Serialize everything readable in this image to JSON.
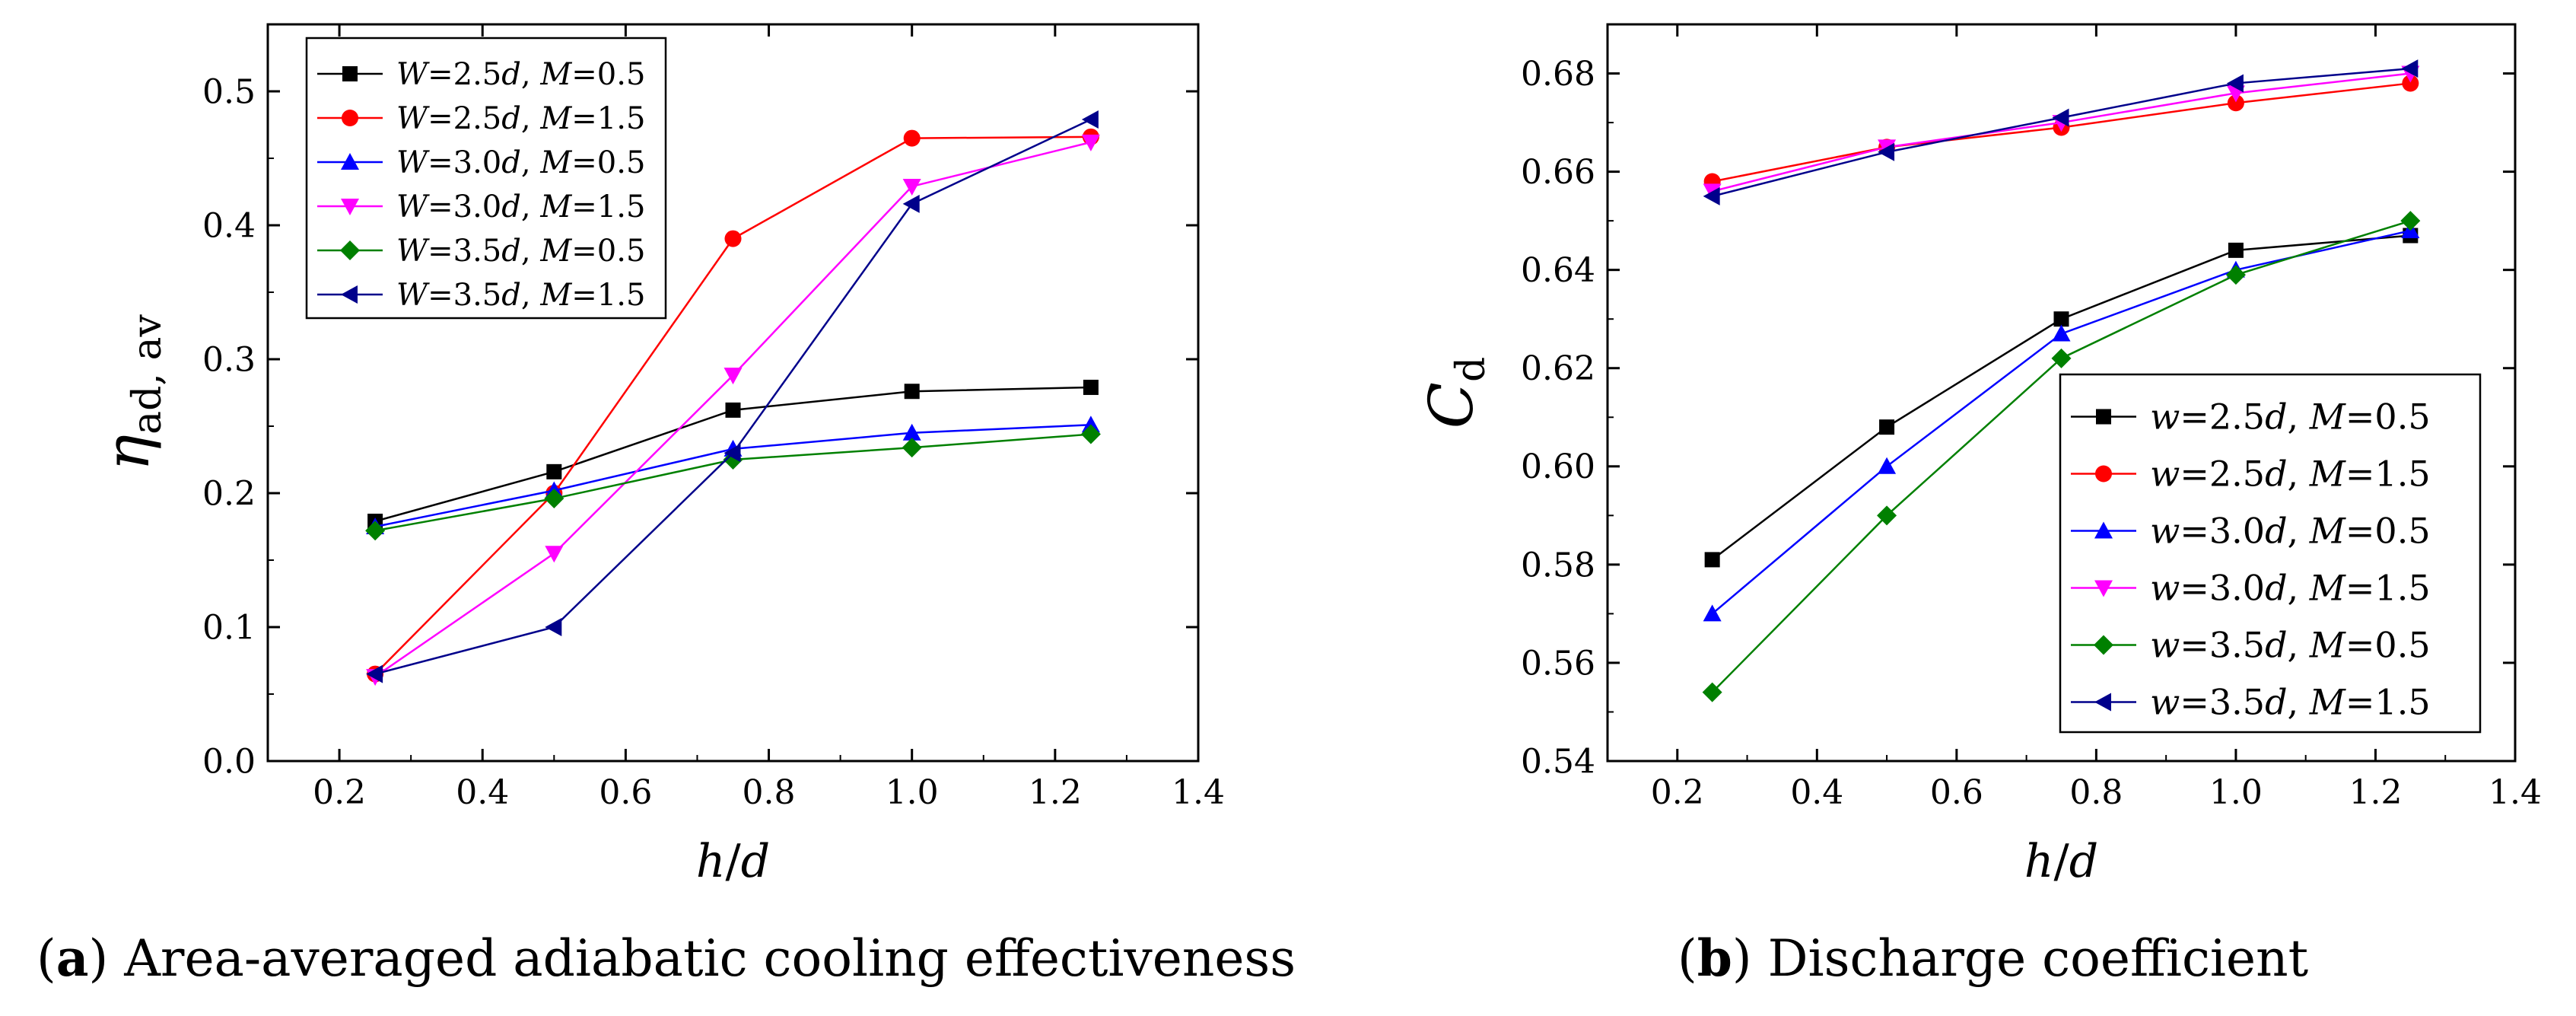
{
  "figure": {
    "caption_a_letter": "a",
    "caption_a_text": " Area-averaged adiabatic cooling effectiveness",
    "caption_b_letter": "b",
    "caption_b_text": " Discharge coefficient"
  },
  "chart_data": [
    {
      "type": "line",
      "panel": "a",
      "ylabel_main": "η",
      "ylabel_sub": "ad, av",
      "xlabel": "h/d",
      "xlim": [
        0.1,
        1.4
      ],
      "ylim": [
        0.0,
        0.55
      ],
      "xticks": [
        0.2,
        0.4,
        0.6,
        0.8,
        1.0,
        1.2,
        1.4
      ],
      "yticks": [
        0.0,
        0.1,
        0.2,
        0.3,
        0.4,
        0.5
      ],
      "x": [
        0.25,
        0.5,
        0.75,
        1.0,
        1.25
      ],
      "legend_position": "top-left",
      "series": [
        {
          "name": "W=2.5d, M=0.5",
          "var": "W",
          "wval": "2.5",
          "mval": "0.5",
          "color": "#000000",
          "marker": "square",
          "values": [
            0.179,
            0.216,
            0.262,
            0.276,
            0.279
          ]
        },
        {
          "name": "W=2.5d, M=1.5",
          "var": "W",
          "wval": "2.5",
          "mval": "1.5",
          "color": "#ff0000",
          "marker": "circle",
          "values": [
            0.065,
            0.2,
            0.39,
            0.465,
            0.466
          ]
        },
        {
          "name": "W=3.0d, M=0.5",
          "var": "W",
          "wval": "3.0",
          "mval": "0.5",
          "color": "#0000ff",
          "marker": "triangle-up",
          "values": [
            0.175,
            0.202,
            0.233,
            0.245,
            0.251
          ]
        },
        {
          "name": "W=3.0d, M=1.5",
          "var": "W",
          "wval": "3.0",
          "mval": "1.5",
          "color": "#ff00ff",
          "marker": "triangle-down",
          "values": [
            0.063,
            0.155,
            0.288,
            0.429,
            0.462
          ]
        },
        {
          "name": "W=3.5d, M=0.5",
          "var": "W",
          "wval": "3.5",
          "mval": "0.5",
          "color": "#008000",
          "marker": "diamond",
          "values": [
            0.172,
            0.196,
            0.225,
            0.234,
            0.244
          ]
        },
        {
          "name": "W=3.5d, M=1.5",
          "var": "W",
          "wval": "3.5",
          "mval": "1.5",
          "color": "#00008b",
          "marker": "triangle-left",
          "values": [
            0.065,
            0.1,
            0.23,
            0.416,
            0.479
          ]
        }
      ]
    },
    {
      "type": "line",
      "panel": "b",
      "ylabel_main": "C",
      "ylabel_sub": "d",
      "xlabel": "h/d",
      "xlim": [
        0.1,
        1.4
      ],
      "ylim": [
        0.54,
        0.69
      ],
      "xticks": [
        0.2,
        0.4,
        0.6,
        0.8,
        1.0,
        1.2,
        1.4
      ],
      "yticks": [
        0.54,
        0.56,
        0.58,
        0.6,
        0.62,
        0.64,
        0.66,
        0.68
      ],
      "x": [
        0.25,
        0.5,
        0.75,
        1.0,
        1.25
      ],
      "legend_position": "bottom-right",
      "series": [
        {
          "name": "w=2.5d, M=0.5",
          "var": "w",
          "wval": "2.5",
          "mval": "0.5",
          "color": "#000000",
          "marker": "square",
          "values": [
            0.581,
            0.608,
            0.63,
            0.644,
            0.647
          ]
        },
        {
          "name": "w=2.5d, M=1.5",
          "var": "w",
          "wval": "2.5",
          "mval": "1.5",
          "color": "#ff0000",
          "marker": "circle",
          "values": [
            0.658,
            0.665,
            0.669,
            0.674,
            0.678
          ]
        },
        {
          "name": "w=3.0d, M=0.5",
          "var": "w",
          "wval": "3.0",
          "mval": "0.5",
          "color": "#0000ff",
          "marker": "triangle-up",
          "values": [
            0.57,
            0.6,
            0.627,
            0.64,
            0.648
          ]
        },
        {
          "name": "w=3.0d, M=1.5",
          "var": "w",
          "wval": "3.0",
          "mval": "1.5",
          "color": "#ff00ff",
          "marker": "triangle-down",
          "values": [
            0.656,
            0.665,
            0.67,
            0.676,
            0.68
          ]
        },
        {
          "name": "w=3.5d, M=0.5",
          "var": "w",
          "wval": "3.5",
          "mval": "0.5",
          "color": "#008000",
          "marker": "diamond",
          "values": [
            0.554,
            0.59,
            0.622,
            0.639,
            0.65
          ]
        },
        {
          "name": "w=3.5d, M=1.5",
          "var": "w",
          "wval": "3.5",
          "mval": "1.5",
          "color": "#00008b",
          "marker": "triangle-left",
          "values": [
            0.655,
            0.664,
            0.671,
            0.678,
            0.681
          ]
        }
      ]
    }
  ]
}
